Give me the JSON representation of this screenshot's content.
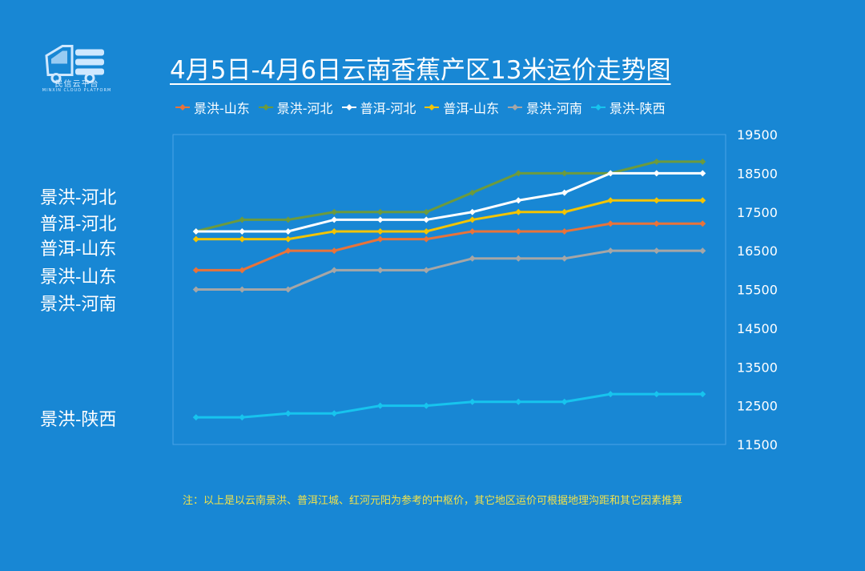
{
  "logo": {
    "name": "民信云平台",
    "subtitle": "MINXIN CLOUD PLATFORM"
  },
  "title": "4月5日-4月6日云南香蕉产区13米运价走势图",
  "side_labels": [
    "景洪-河北",
    "普洱-河北",
    "普洱-山东",
    "景洪-山东",
    "景洪-河南",
    "景洪-陕西"
  ],
  "note": "注：以上是以云南景洪、普洱江城、红河元阳为参考的中枢价，其它地区运价可根据地理沟距和其它因素推算",
  "chart_data": {
    "type": "line",
    "x": [
      1,
      2,
      3,
      4,
      5,
      6,
      7,
      8,
      9,
      10,
      11,
      12
    ],
    "ylim": [
      11500,
      19500
    ],
    "yticks": [
      11500,
      12500,
      13500,
      14500,
      15500,
      16500,
      17500,
      18500,
      19500
    ],
    "ytick_labels": [
      "11500",
      "12500",
      "13500",
      "14500",
      "15500",
      "16500",
      "17500",
      "18500",
      "19500"
    ],
    "legend_position": "top",
    "grid": false,
    "series": [
      {
        "name": "景洪-山东",
        "color": "#e8733a",
        "values": [
          16000,
          16000,
          16500,
          16500,
          16800,
          16800,
          17000,
          17000,
          17000,
          17200,
          17200,
          17200
        ]
      },
      {
        "name": "景洪-河北",
        "color": "#6c9a3e",
        "values": [
          17000,
          17300,
          17300,
          17500,
          17500,
          17500,
          18000,
          18500,
          18500,
          18500,
          18800,
          18800
        ]
      },
      {
        "name": "普洱-河北",
        "color": "#ffffff",
        "values": [
          17000,
          17000,
          17000,
          17300,
          17300,
          17300,
          17500,
          17800,
          18000,
          18500,
          18500,
          18500
        ]
      },
      {
        "name": "普洱-山东",
        "color": "#f3c400",
        "values": [
          16800,
          16800,
          16800,
          17000,
          17000,
          17000,
          17300,
          17500,
          17500,
          17800,
          17800,
          17800
        ]
      },
      {
        "name": "景洪-河南",
        "color": "#a6a6a6",
        "values": [
          15500,
          15500,
          15500,
          16000,
          16000,
          16000,
          16300,
          16300,
          16300,
          16500,
          16500,
          16500
        ]
      },
      {
        "name": "景洪-陕西",
        "color": "#17c4ee",
        "values": [
          12200,
          12200,
          12300,
          12300,
          12500,
          12500,
          12600,
          12600,
          12600,
          12800,
          12800,
          12800
        ]
      }
    ]
  }
}
